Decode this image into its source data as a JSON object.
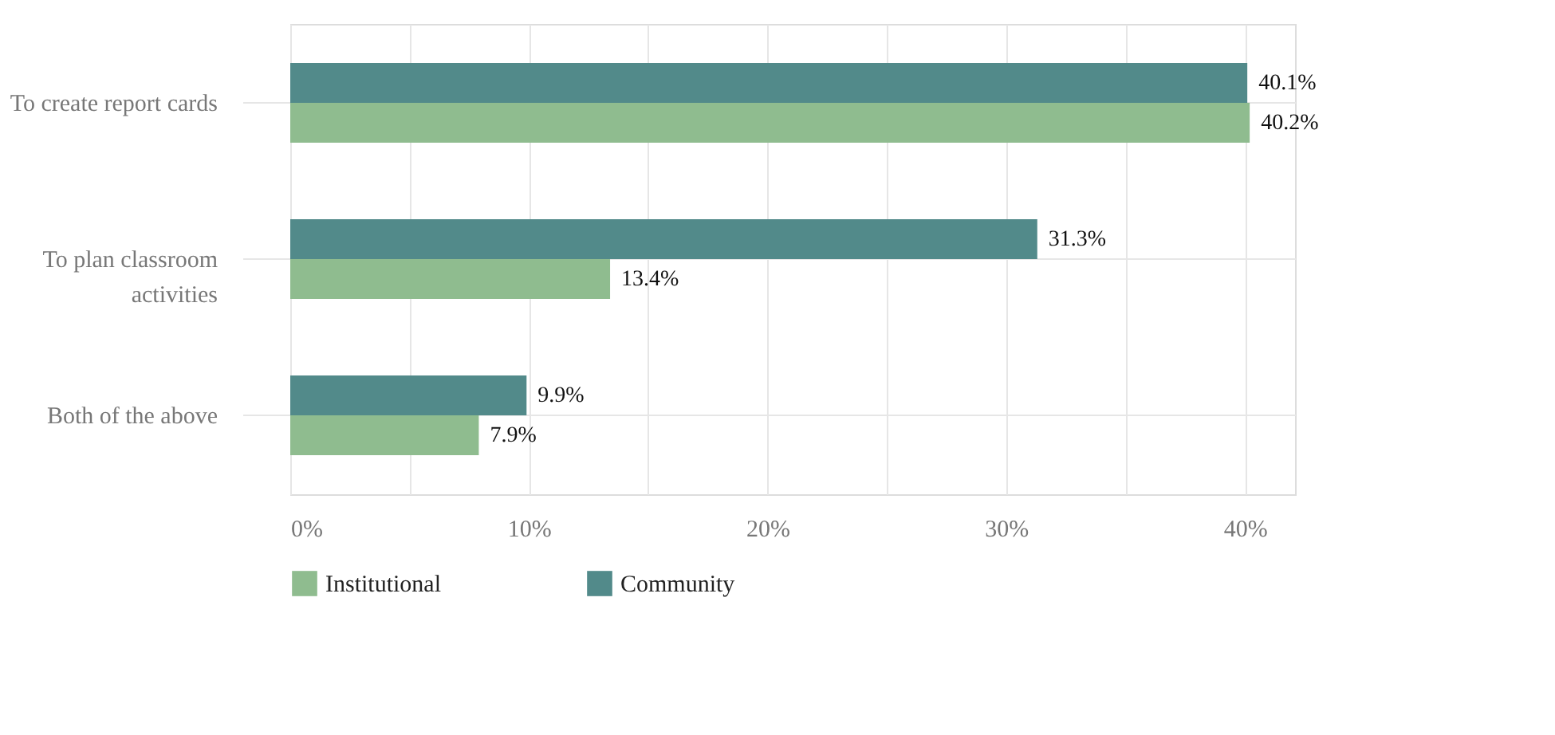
{
  "chart_data": {
    "type": "bar",
    "orientation": "horizontal",
    "categories": [
      "To create report cards",
      "To plan classroom activities",
      "Both of the above"
    ],
    "series": [
      {
        "name": "Institutional",
        "color": "#8fbc8f",
        "values": [
          40.2,
          13.4,
          7.9
        ],
        "value_labels": [
          "40.2%",
          "13.4%",
          "7.9%"
        ]
      },
      {
        "name": "Community",
        "color": "#528a8a",
        "values": [
          40.1,
          31.3,
          9.9
        ],
        "value_labels": [
          "40.1%",
          "31.3%",
          "9.9%"
        ]
      }
    ],
    "xlim": [
      0,
      42.1
    ],
    "xticks": [
      {
        "value": 0,
        "label": "0%"
      },
      {
        "value": 5,
        "label": null
      },
      {
        "value": 10,
        "label": "10%"
      },
      {
        "value": 15,
        "label": null
      },
      {
        "value": 20,
        "label": "20%"
      },
      {
        "value": 25,
        "label": null
      },
      {
        "value": 30,
        "label": "30%"
      },
      {
        "value": 35,
        "label": null
      },
      {
        "value": 40,
        "label": "40%"
      }
    ],
    "grid": true,
    "legend": "bottom"
  }
}
